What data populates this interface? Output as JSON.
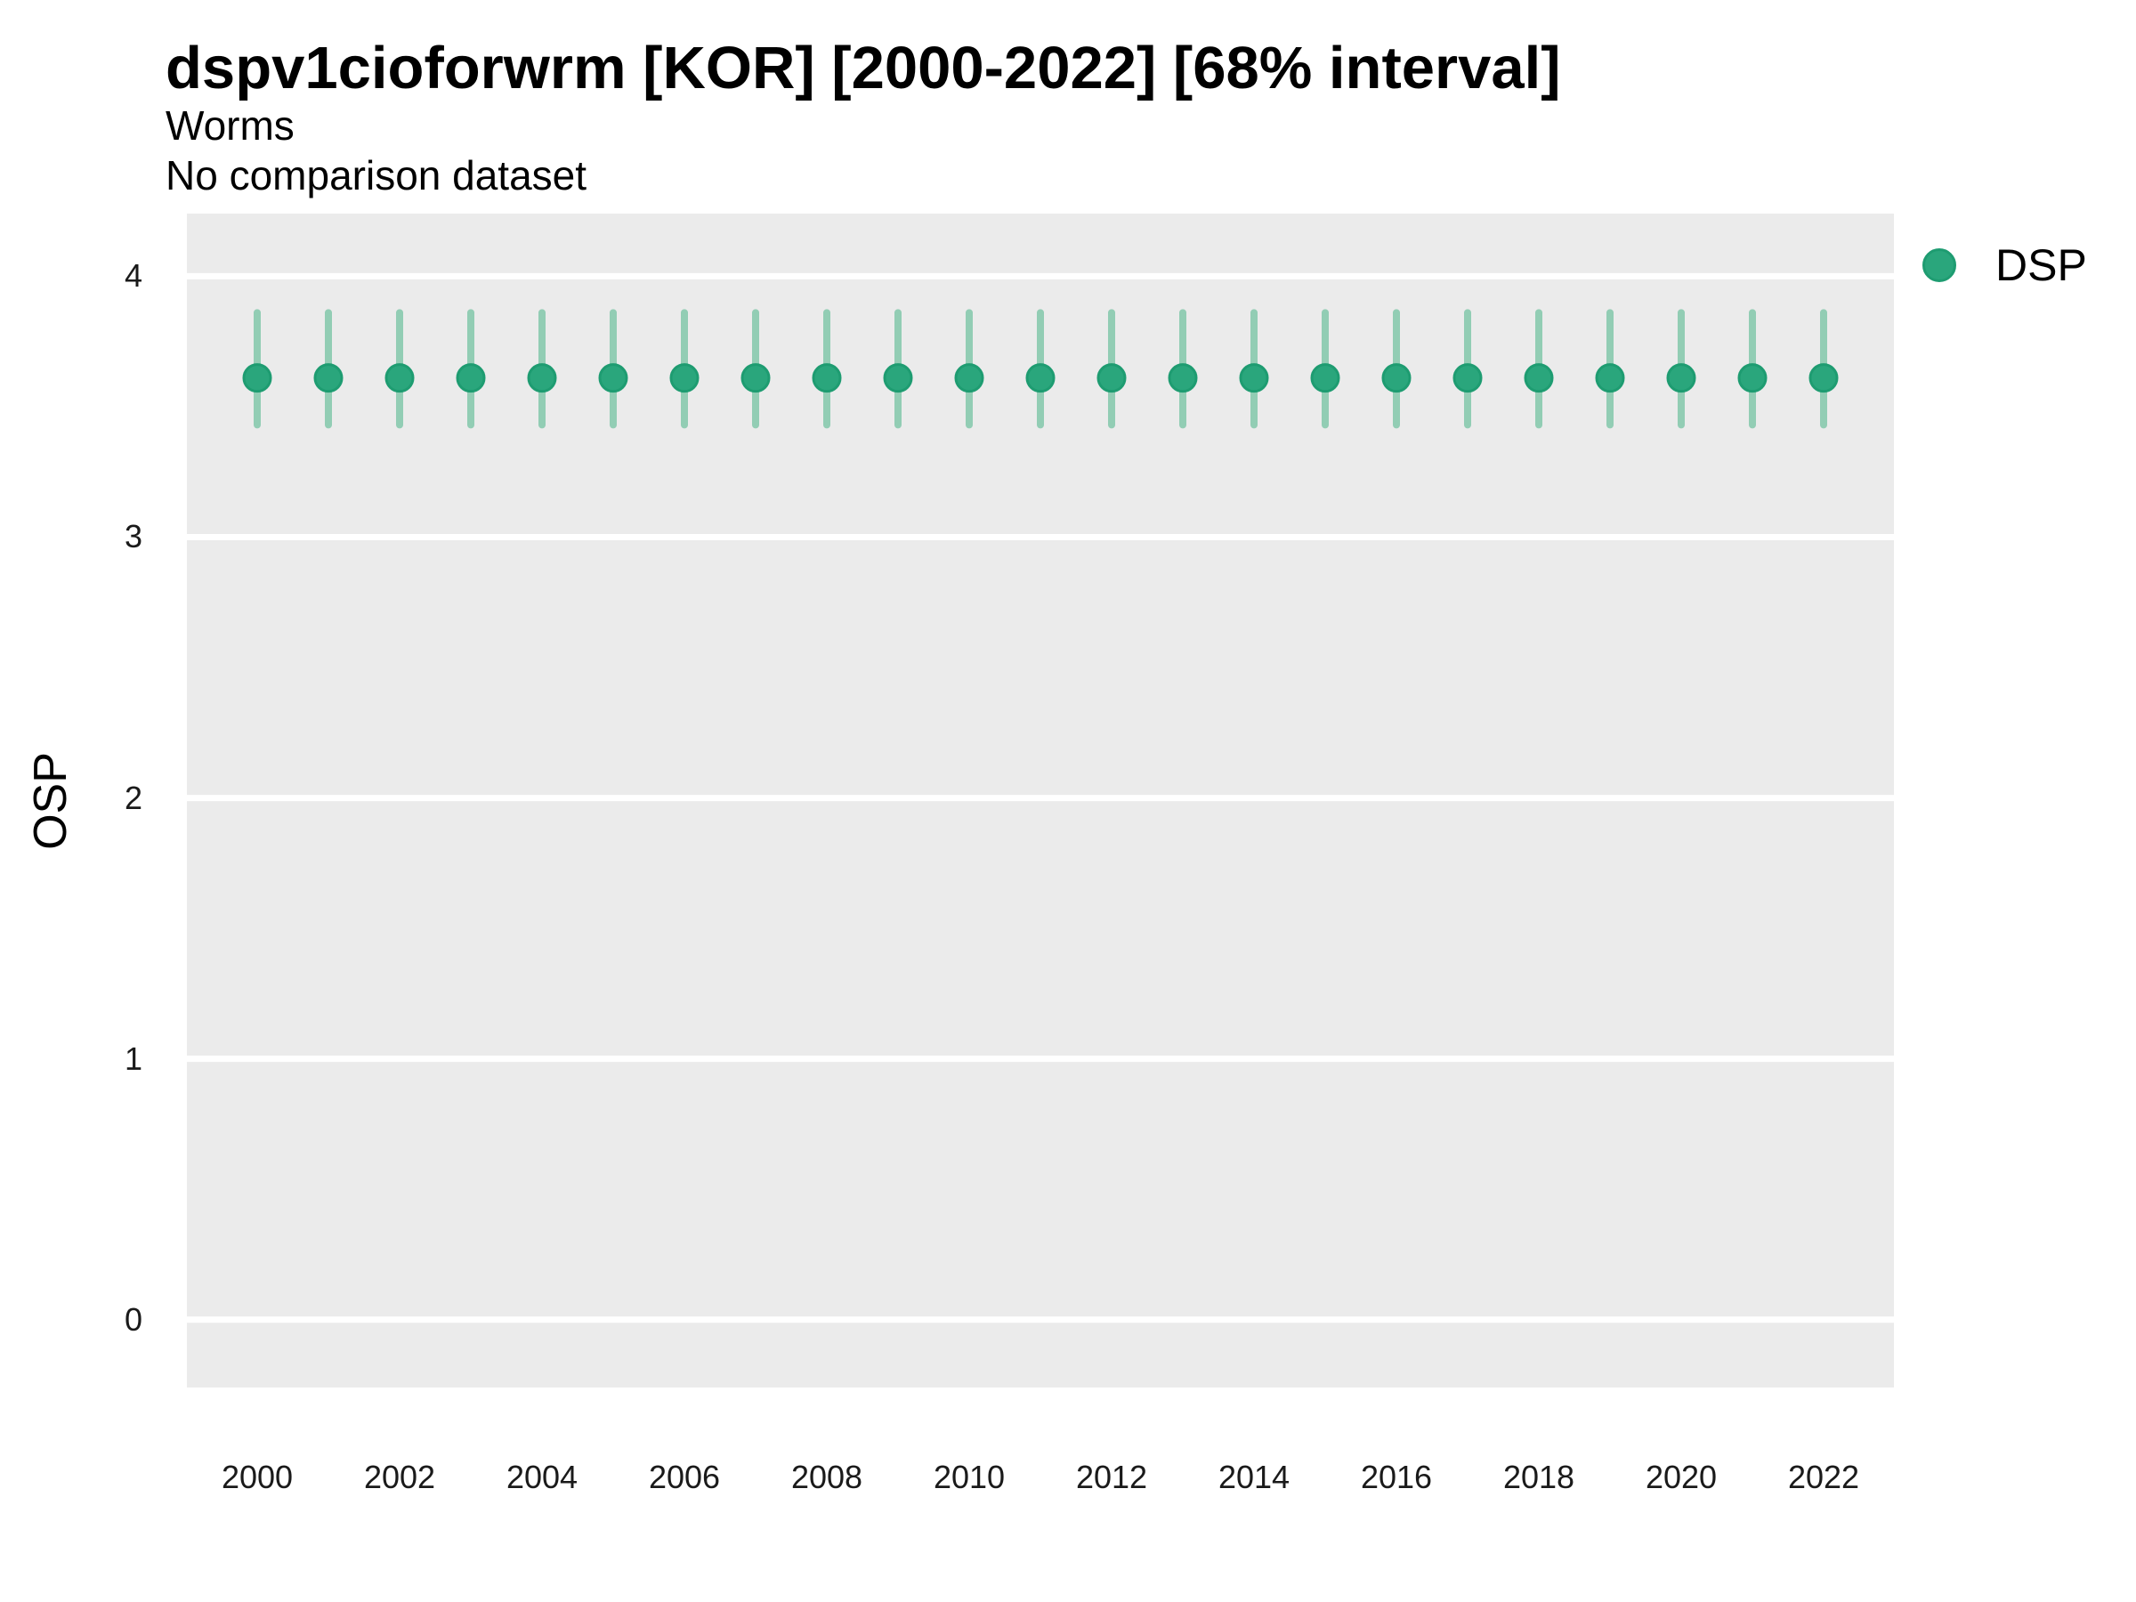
{
  "header": {
    "title": "dspv1cioforwrm [KOR] [2000-2022] [68% interval]",
    "subtitle": "Worms",
    "note": "No comparison dataset"
  },
  "axes": {
    "y_label": "OSP",
    "x_label": ""
  },
  "legend": {
    "position": "right-top",
    "items": [
      {
        "label": "DSP",
        "marker": "circle",
        "color": "#2AA67C"
      }
    ]
  },
  "colors": {
    "plot_background": "#EBEBEB",
    "gridline": "#FFFFFF",
    "point_fill": "#2AA67C",
    "point_stroke": "#1E9C71",
    "interval_bar": "#92CDB4",
    "text": "#000000",
    "tick_text": "#1a1a1a"
  },
  "chart_data": {
    "type": "scatter",
    "title": "dspv1cioforwrm [KOR] [2000-2022] [68% interval]",
    "subtitle": "Worms",
    "annotation": "No comparison dataset",
    "xlabel": "",
    "ylabel": "OSP",
    "x": [
      2000,
      2001,
      2002,
      2003,
      2004,
      2005,
      2006,
      2007,
      2008,
      2009,
      2010,
      2011,
      2012,
      2013,
      2014,
      2015,
      2016,
      2017,
      2018,
      2019,
      2020,
      2021,
      2022
    ],
    "series": [
      {
        "name": "DSP",
        "values": [
          3.61,
          3.61,
          3.61,
          3.61,
          3.61,
          3.61,
          3.61,
          3.61,
          3.61,
          3.61,
          3.61,
          3.61,
          3.61,
          3.61,
          3.61,
          3.61,
          3.61,
          3.61,
          3.61,
          3.61,
          3.61,
          3.61,
          3.61
        ],
        "interval_low": [
          3.43,
          3.43,
          3.43,
          3.43,
          3.43,
          3.43,
          3.43,
          3.43,
          3.43,
          3.43,
          3.43,
          3.43,
          3.43,
          3.43,
          3.43,
          3.43,
          3.43,
          3.43,
          3.43,
          3.43,
          3.43,
          3.43,
          3.43
        ],
        "interval_high": [
          3.86,
          3.86,
          3.86,
          3.86,
          3.86,
          3.86,
          3.86,
          3.86,
          3.86,
          3.86,
          3.86,
          3.86,
          3.86,
          3.86,
          3.86,
          3.86,
          3.86,
          3.86,
          3.86,
          3.86,
          3.86,
          3.86,
          3.86
        ],
        "interval_level": "68%"
      }
    ],
    "xticks": [
      2000,
      2002,
      2004,
      2006,
      2008,
      2010,
      2012,
      2014,
      2016,
      2018,
      2020,
      2022
    ],
    "yticks": [
      0,
      1,
      2,
      3,
      4
    ],
    "ylim": [
      -0.26,
      4.24
    ],
    "grid": "horizontal",
    "legend_position": "right-top",
    "marker": "circle-with-interval-bar"
  }
}
